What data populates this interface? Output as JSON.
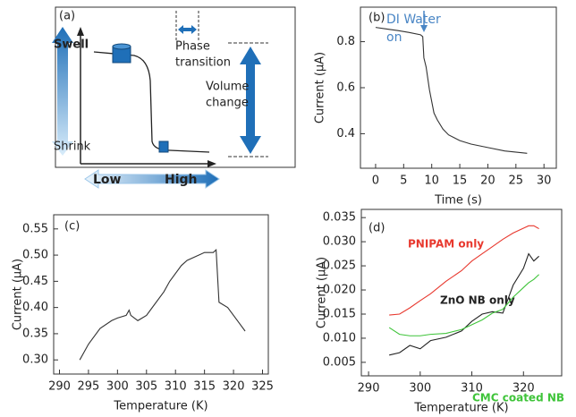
{
  "chart_data": [
    {
      "type": "diagram",
      "label": "(a)",
      "swell": "Swell",
      "shrink": "Shrink",
      "phase_transition": [
        "Phase",
        "transition"
      ],
      "volume_change": [
        "Volume",
        "change"
      ],
      "low": "Low",
      "high": "High"
    },
    {
      "type": "line",
      "label": "(b)",
      "xlabel": "Time (s)",
      "ylabel": "Current (μA)",
      "annotation": [
        "DI Water",
        "on"
      ],
      "annotation_color": "#4a86c5",
      "x": [
        0,
        2,
        4,
        6,
        8,
        8.4,
        8.6,
        9,
        9.6,
        10.4,
        11,
        12,
        13,
        15,
        17,
        20,
        23,
        27
      ],
      "values": [
        0.862,
        0.855,
        0.848,
        0.84,
        0.83,
        0.822,
        0.73,
        0.69,
        0.59,
        0.49,
        0.46,
        0.42,
        0.395,
        0.37,
        0.355,
        0.34,
        0.325,
        0.315
      ],
      "color": "#333333",
      "xlim": [
        -2.7,
        32.2
      ],
      "xticks": [
        0,
        5,
        10,
        15,
        20,
        25,
        30
      ],
      "ylim": [
        0.25,
        0.95
      ],
      "yticks": [
        0.4,
        0.6,
        0.8
      ]
    },
    {
      "type": "line",
      "label": "(c)",
      "xlabel": "Temperature (K)",
      "ylabel": "Current (μA)",
      "x": [
        293.5,
        295,
        297,
        299,
        300,
        301.5,
        302,
        302.3,
        303.5,
        305,
        306,
        308,
        309,
        311,
        312,
        314,
        315,
        316.5,
        317,
        317.5,
        319,
        321,
        322
      ],
      "values": [
        0.3,
        0.33,
        0.36,
        0.375,
        0.38,
        0.385,
        0.395,
        0.385,
        0.375,
        0.385,
        0.4,
        0.43,
        0.45,
        0.48,
        0.49,
        0.5,
        0.505,
        0.505,
        0.51,
        0.41,
        0.4,
        0.37,
        0.355
      ],
      "color": "#333333",
      "xlim": [
        289,
        326
      ],
      "xticks": [
        290,
        295,
        300,
        305,
        310,
        315,
        320,
        325
      ],
      "ylim": [
        0.273,
        0.577
      ],
      "yticks": [
        {
          "value": 0.3,
          "label": "0.30"
        },
        0.35,
        {
          "value": 0.4,
          "label": "0.40"
        },
        0.45,
        {
          "value": 0.5,
          "label": "0.50"
        },
        0.55
      ]
    },
    {
      "type": "line",
      "label": "(d)",
      "xlabel": "Temperature (K)",
      "ylabel": "Current (μA)",
      "x": [
        294,
        296,
        298,
        300,
        302,
        305,
        308,
        310,
        312,
        314,
        316,
        318,
        320,
        321,
        322,
        323
      ],
      "series": [
        {
          "name": "PNIPAM only",
          "color": "#e8382e",
          "values": [
            0.0148,
            0.015,
            0.0163,
            0.0178,
            0.0192,
            0.0218,
            0.024,
            0.026,
            0.0275,
            0.029,
            0.0305,
            0.0318,
            0.0328,
            0.0333,
            0.0333,
            0.0327
          ]
        },
        {
          "name": "ZnO NB only",
          "color": "#222222",
          "values": [
            0.0065,
            0.007,
            0.0085,
            0.0078,
            0.0095,
            0.0102,
            0.0115,
            0.0135,
            0.015,
            0.0155,
            0.0152,
            0.021,
            0.0245,
            0.0275,
            0.026,
            0.027
          ]
        },
        {
          "name": "CMC coated NB",
          "color": "#3fc43a",
          "values": [
            0.0122,
            0.0108,
            0.0105,
            0.0105,
            0.0108,
            0.011,
            0.0118,
            0.0128,
            0.0138,
            0.0152,
            0.016,
            0.0185,
            0.0205,
            0.0215,
            0.0222,
            0.0232
          ]
        }
      ],
      "xlim": [
        288.6,
        327.4
      ],
      "xticks": [
        290,
        300,
        310,
        320
      ],
      "ylim": [
        0.0022,
        0.0367
      ],
      "yticks": [
        0.005,
        {
          "value": 0.01,
          "label": "0.010"
        },
        0.015,
        {
          "value": 0.02,
          "label": "0.020"
        },
        0.025,
        {
          "value": 0.03,
          "label": "0.030"
        },
        0.035
      ]
    }
  ]
}
